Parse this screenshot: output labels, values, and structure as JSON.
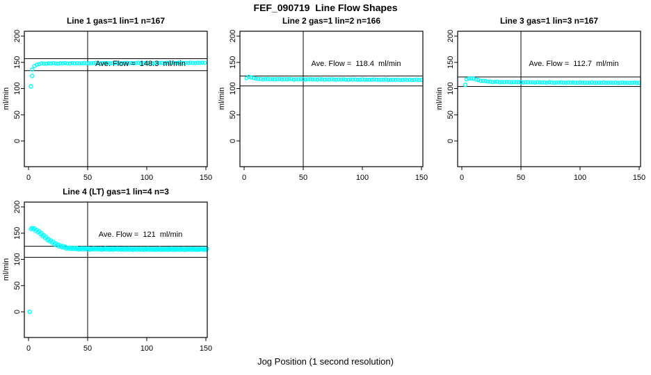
{
  "figure": {
    "title": "FEF_090719  Line Flow Shapes",
    "xlabel": "Jog Position (1 second resolution)",
    "ylabel": "ml/min"
  },
  "style": {
    "point_color": "#00FFFF",
    "axis_color": "#000000",
    "background": "#FFFFFF"
  },
  "axes": {
    "x_ticks": [
      0,
      50,
      100,
      150
    ],
    "y_ticks": [
      0,
      50,
      100,
      150,
      200
    ],
    "x_domain": [
      -3.5,
      151.2
    ],
    "y_domain": [
      -49,
      209
    ],
    "vline_x": 50,
    "x_end": 150
  },
  "chart_data": [
    {
      "type": "scatter",
      "title": "Line 1 gas=1 lin=1 n=167",
      "n": 167,
      "ave_flow": 148.3,
      "annotation": "Ave. Flow =  148.3  ml/min",
      "ref_lines": {
        "upper": 157,
        "lower": 134
      },
      "band_knots": [
        [
          3,
          136
        ],
        [
          4,
          140.5
        ],
        [
          5,
          143
        ],
        [
          6,
          144.8
        ],
        [
          8,
          146.4
        ],
        [
          10,
          147.2
        ],
        [
          14,
          147.8
        ],
        [
          30,
          148.1
        ],
        [
          60,
          148.4
        ],
        [
          100,
          148.7
        ],
        [
          150,
          149
        ]
      ],
      "outliers": [
        [
          2,
          104
        ],
        [
          3,
          124
        ]
      ],
      "band_double": false
    },
    {
      "type": "scatter",
      "title": "Line 2 gas=1 lin=2 n=166",
      "n": 166,
      "ave_flow": 118.4,
      "annotation": "Ave. Flow =  118.4  ml/min",
      "ref_lines": {
        "upper": 124,
        "lower": 105
      },
      "band_knots": [
        [
          2,
          119.8
        ],
        [
          3,
          121.3
        ],
        [
          4,
          122.1
        ],
        [
          5,
          122.2
        ],
        [
          6,
          121.7
        ],
        [
          7,
          120.9
        ],
        [
          8,
          120
        ],
        [
          9,
          119.3
        ],
        [
          10,
          118.8
        ],
        [
          12,
          118.3
        ],
        [
          15,
          118
        ],
        [
          25,
          117.9
        ],
        [
          40,
          117.7
        ],
        [
          60,
          117.5
        ],
        [
          80,
          117.3
        ],
        [
          100,
          117.1
        ],
        [
          125,
          116.8
        ],
        [
          150,
          116.5
        ]
      ],
      "outliers": [],
      "band_double": false
    },
    {
      "type": "scatter",
      "title": "Line 3 gas=1 lin=3 n=167",
      "n": 167,
      "ave_flow": 112.7,
      "annotation": "Ave. Flow =  112.7  ml/min",
      "ref_lines": {
        "upper": 122,
        "lower": 104
      },
      "band_knots": [
        [
          4,
          117
        ],
        [
          5,
          118.6
        ],
        [
          6,
          119.4
        ],
        [
          7,
          119.6
        ],
        [
          8,
          119.4
        ],
        [
          9,
          119
        ],
        [
          10,
          118.4
        ],
        [
          12,
          117.2
        ],
        [
          14,
          116.1
        ],
        [
          16,
          115.2
        ],
        [
          18,
          114.4
        ],
        [
          20,
          113.8
        ],
        [
          24,
          113.1
        ],
        [
          28,
          112.7
        ],
        [
          35,
          112.3
        ],
        [
          45,
          112
        ],
        [
          60,
          111.8
        ],
        [
          80,
          111.5
        ],
        [
          100,
          111.3
        ],
        [
          125,
          111.1
        ],
        [
          150,
          110.9
        ]
      ],
      "outliers": [
        [
          3,
          107
        ]
      ],
      "band_double": false
    },
    {
      "type": "scatter",
      "title": "Line 4 (LT) gas=1 lin=4 n=3",
      "n": 3,
      "ave_flow": 121,
      "annotation": "Ave. Flow =  121  ml/min",
      "ref_lines": {
        "upper": 125,
        "lower": 104
      },
      "band_knots": [
        [
          2,
          157.8
        ],
        [
          3,
          157.4
        ],
        [
          4,
          156.8
        ],
        [
          5,
          156
        ],
        [
          6,
          154.9
        ],
        [
          7,
          153.4
        ],
        [
          8,
          151.7
        ],
        [
          9,
          149.9
        ],
        [
          10,
          148
        ],
        [
          11,
          146.1
        ],
        [
          12,
          144.2
        ],
        [
          13,
          142.4
        ],
        [
          14,
          140.6
        ],
        [
          15,
          138.9
        ],
        [
          16,
          137.2
        ],
        [
          17,
          135.6
        ],
        [
          18,
          134.1
        ],
        [
          19,
          132.7
        ],
        [
          20,
          131.3
        ],
        [
          21,
          130
        ],
        [
          22,
          128.8
        ],
        [
          23,
          127.7
        ],
        [
          24,
          126.6
        ],
        [
          25,
          125.6
        ],
        [
          26,
          124.7
        ],
        [
          27,
          123.9
        ],
        [
          28,
          123.2
        ],
        [
          29,
          122.5
        ],
        [
          30,
          121.9
        ],
        [
          32,
          121
        ],
        [
          34,
          120.4
        ],
        [
          36,
          120
        ],
        [
          38,
          119.7
        ],
        [
          40,
          119.5
        ],
        [
          45,
          119.2
        ],
        [
          50,
          119
        ],
        [
          60,
          118.8
        ],
        [
          80,
          118.6
        ],
        [
          100,
          118.5
        ],
        [
          125,
          118.4
        ],
        [
          150,
          118.3
        ]
      ],
      "outliers": [
        [
          1,
          0
        ]
      ],
      "band_double": true
    }
  ]
}
